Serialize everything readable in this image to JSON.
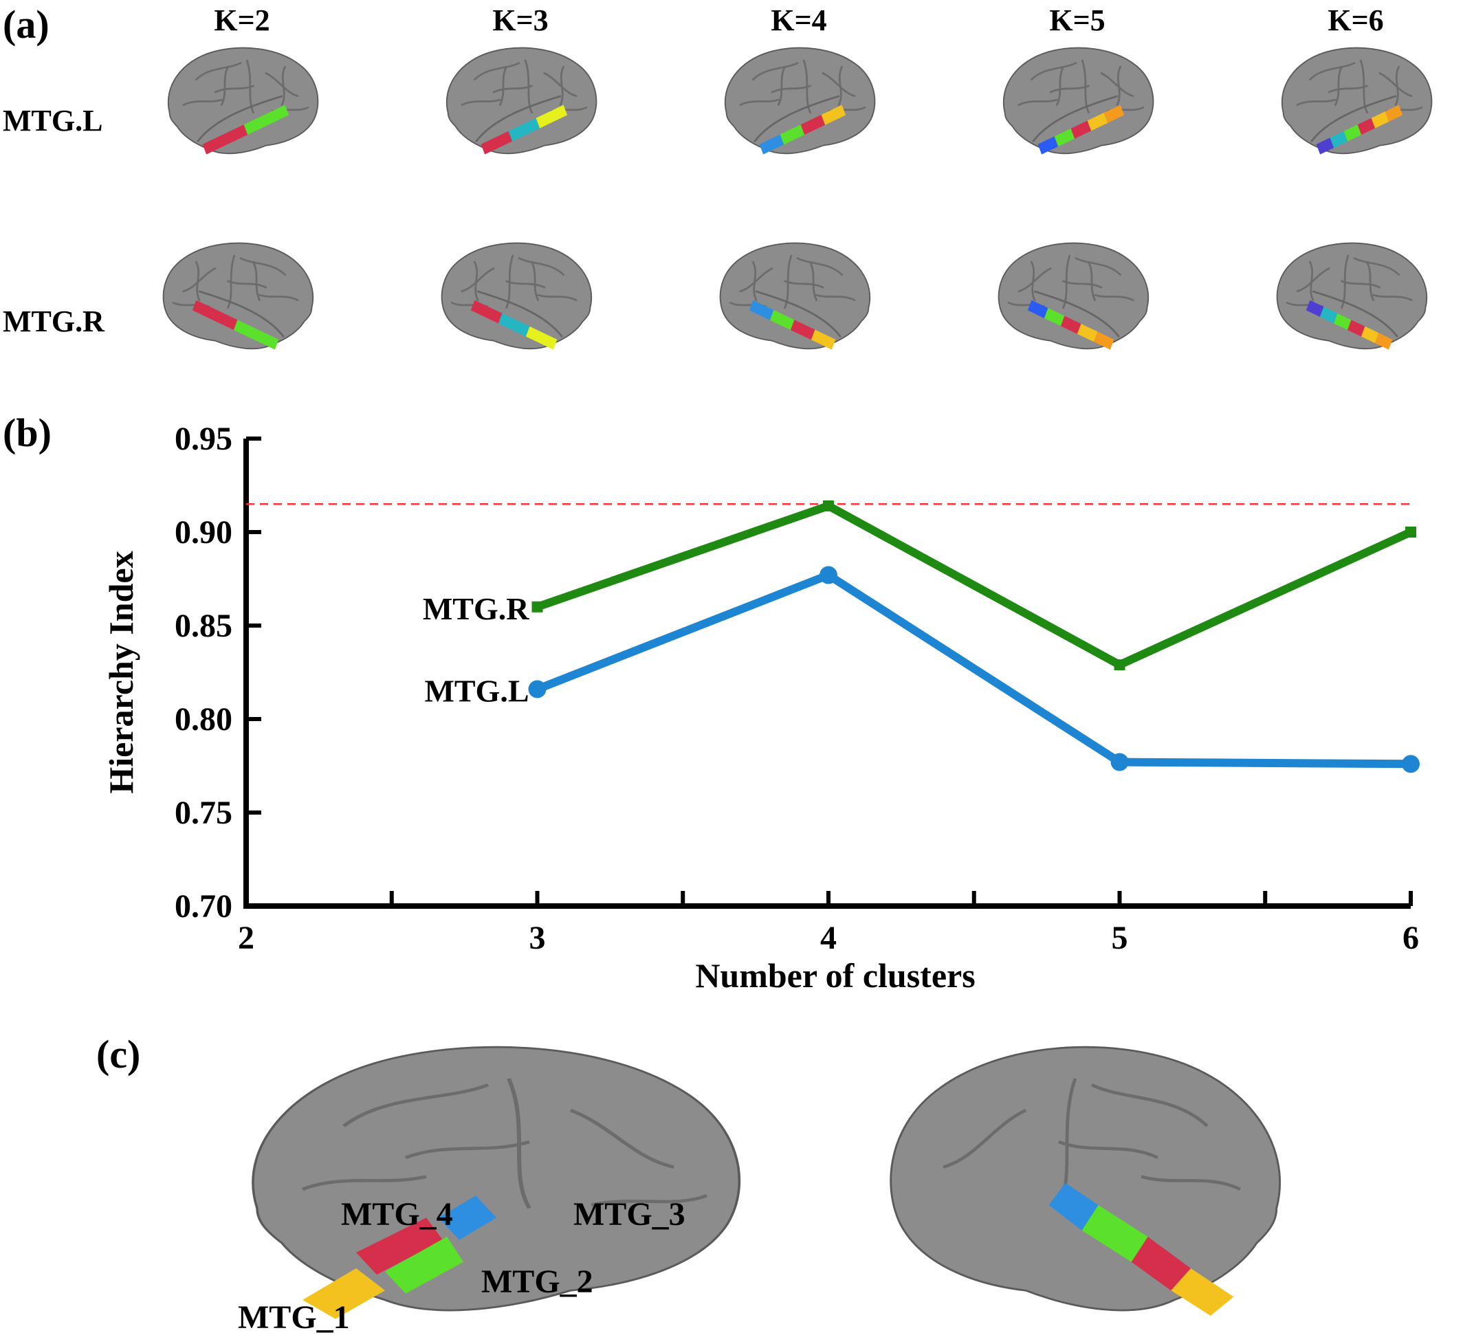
{
  "panel_a": {
    "label": "(a)",
    "k_labels": [
      "K=2",
      "K=3",
      "K=4",
      "K=5",
      "K=6"
    ],
    "rows": [
      "MTG.L",
      "MTG.R"
    ],
    "brain_colors": {
      "K=2": [
        "#d62f4b",
        "#5be02c"
      ],
      "K=3": [
        "#d62f4b",
        "#25b6c4",
        "#e6f01c"
      ],
      "K=4": [
        "#2e8fe0",
        "#5be02c",
        "#d62f4b",
        "#f4c21e"
      ],
      "K=5": [
        "#2a5bf2",
        "#5be02c",
        "#d62f4b",
        "#f4c21e",
        "#f49a1e"
      ],
      "K=6": [
        "#4f3fd0",
        "#25b6c4",
        "#5be02c",
        "#d62f4b",
        "#f4c21e",
        "#f49a1e"
      ]
    }
  },
  "panel_b": {
    "label": "(b)"
  },
  "chart_data": {
    "type": "line",
    "xlabel": "Number of clusters",
    "ylabel": "Hierarchy Index",
    "xlim": [
      2,
      6
    ],
    "ylim": [
      0.7,
      0.95
    ],
    "x_ticks": [
      "2",
      "3",
      "4",
      "5",
      "6"
    ],
    "y_ticks": [
      "0.70",
      "0.75",
      "0.80",
      "0.85",
      "0.90",
      "0.95"
    ],
    "reference_line": {
      "y": 0.915,
      "color": "#ff3333",
      "style": "dashed"
    },
    "series": [
      {
        "name": "MTG.R",
        "color": "#1f8a12",
        "x": [
          3,
          4,
          5,
          6
        ],
        "values": [
          0.86,
          0.914,
          0.829,
          0.9
        ]
      },
      {
        "name": "MTG.L",
        "color": "#1e85d2",
        "x": [
          3,
          4,
          5,
          6
        ],
        "values": [
          0.816,
          0.877,
          0.777,
          0.776
        ]
      }
    ]
  },
  "panel_c": {
    "label": "(c)",
    "regions": [
      {
        "name": "MTG_1",
        "color": "#f4c21e"
      },
      {
        "name": "MTG_2",
        "color": "#5be02c"
      },
      {
        "name": "MTG_3",
        "color": "#2e8fe0"
      },
      {
        "name": "MTG_4",
        "color": "#d62f4b"
      }
    ]
  }
}
